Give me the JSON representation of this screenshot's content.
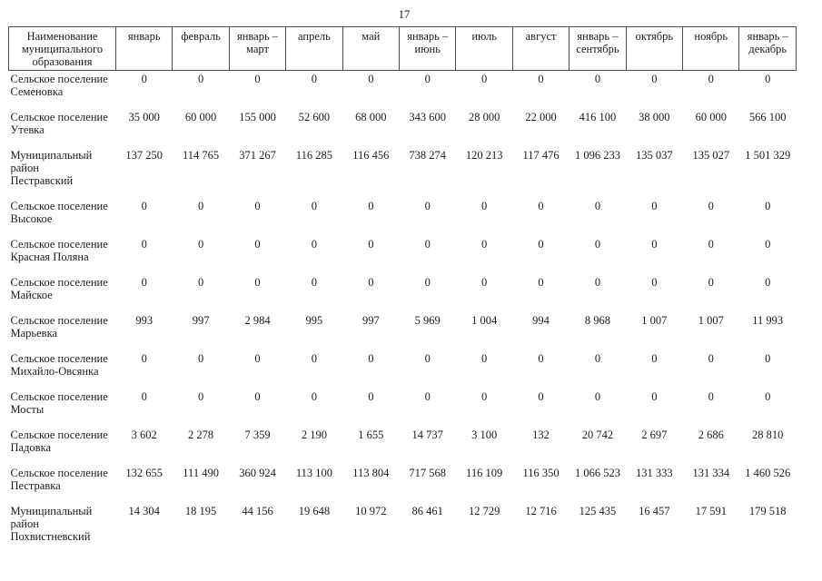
{
  "page": {
    "number": "17"
  },
  "table": {
    "columns": [
      {
        "label": "Наименование\nмуниципального\nобразования"
      },
      {
        "label": "январь"
      },
      {
        "label": "февраль"
      },
      {
        "label": "январь –\nмарт"
      },
      {
        "label": "апрель"
      },
      {
        "label": "май"
      },
      {
        "label": "январь –\nиюнь"
      },
      {
        "label": "июль"
      },
      {
        "label": "август"
      },
      {
        "label": "январь –\nсентябрь"
      },
      {
        "label": "октябрь"
      },
      {
        "label": "ноябрь"
      },
      {
        "label": "январь –\nдекабрь"
      }
    ],
    "rows": [
      {
        "name": "Сельское поселение\nСеменовка",
        "values": [
          "0",
          "0",
          "0",
          "0",
          "0",
          "0",
          "0",
          "0",
          "0",
          "0",
          "0",
          "0"
        ]
      },
      {
        "name": "Сельское поселение\nУтевка",
        "values": [
          "35 000",
          "60 000",
          "155 000",
          "52 600",
          "68 000",
          "343 600",
          "28 000",
          "22 000",
          "416 100",
          "38 000",
          "60 000",
          "566 100"
        ]
      },
      {
        "name": "Муниципальный район\nПестравский",
        "values": [
          "137 250",
          "114 765",
          "371 267",
          "116 285",
          "116 456",
          "738 274",
          "120 213",
          "117 476",
          "1 096 233",
          "135 037",
          "135 027",
          "1 501 329"
        ]
      },
      {
        "name": "Сельское поселение\nВысокое",
        "values": [
          "0",
          "0",
          "0",
          "0",
          "0",
          "0",
          "0",
          "0",
          "0",
          "0",
          "0",
          "0"
        ]
      },
      {
        "name": "Сельское поселение\nКрасная Поляна",
        "values": [
          "0",
          "0",
          "0",
          "0",
          "0",
          "0",
          "0",
          "0",
          "0",
          "0",
          "0",
          "0"
        ]
      },
      {
        "name": "Сельское поселение\nМайское",
        "values": [
          "0",
          "0",
          "0",
          "0",
          "0",
          "0",
          "0",
          "0",
          "0",
          "0",
          "0",
          "0"
        ]
      },
      {
        "name": "Сельское поселение\nМарьевка",
        "values": [
          "993",
          "997",
          "2 984",
          "995",
          "997",
          "5 969",
          "1 004",
          "994",
          "8 968",
          "1 007",
          "1 007",
          "11 993"
        ]
      },
      {
        "name": "Сельское поселение\nМихайло-Овсянка",
        "values": [
          "0",
          "0",
          "0",
          "0",
          "0",
          "0",
          "0",
          "0",
          "0",
          "0",
          "0",
          "0"
        ]
      },
      {
        "name": "Сельское поселение\nМосты",
        "values": [
          "0",
          "0",
          "0",
          "0",
          "0",
          "0",
          "0",
          "0",
          "0",
          "0",
          "0",
          "0"
        ]
      },
      {
        "name": "Сельское поселение\nПадовка",
        "values": [
          "3 602",
          "2 278",
          "7 359",
          "2 190",
          "1 655",
          "14 737",
          "3 100",
          "132",
          "20 742",
          "2 697",
          "2 686",
          "28 810"
        ]
      },
      {
        "name": "Сельское поселение\nПестравка",
        "values": [
          "132 655",
          "111 490",
          "360 924",
          "113 100",
          "113 804",
          "717 568",
          "116 109",
          "116 350",
          "1 066 523",
          "131 333",
          "131 334",
          "1 460 526"
        ]
      },
      {
        "name": "Муниципальный район\nПохвистневский",
        "values": [
          "14 304",
          "18 195",
          "44 156",
          "19 648",
          "10 972",
          "86 461",
          "12 729",
          "12 716",
          "125 435",
          "16 457",
          "17 591",
          "179 518"
        ]
      }
    ]
  }
}
